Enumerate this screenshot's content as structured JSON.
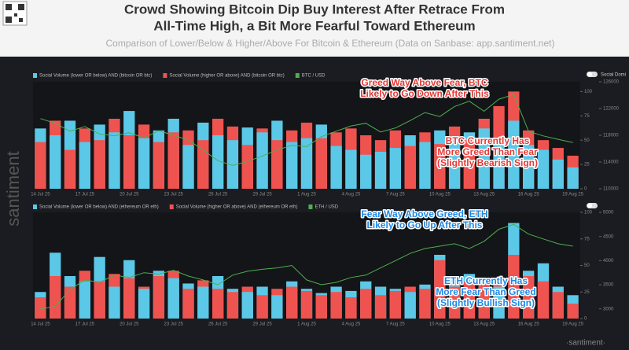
{
  "header": {
    "title": [
      "Crowd Showing Bitcoin Dip Buy Interest After Retrace From",
      "All-Time High, a Bit More Fearful Toward Ethereum"
    ],
    "subtitle": "Comparison of Lower/Below & Higher/Above For Bitcoin & Ethereum (Data on Sanbase: app.santiment.net)",
    "watermark": "santiment",
    "footer": "·santiment·",
    "toggle": "Social Domi"
  },
  "chart_data": [
    {
      "type": "bar",
      "categories": [
        "14 Jul 25",
        null,
        null,
        "17 Jul 25",
        null,
        null,
        "20 Jul 25",
        null,
        null,
        "23 Jul 25",
        null,
        null,
        "26 Jul 25",
        null,
        null,
        "29 Jul 25",
        null,
        null,
        "1 Aug 25",
        null,
        null,
        "4 Aug 25",
        null,
        null,
        "7 Aug 25",
        null,
        null,
        "10 Aug 25",
        null,
        null,
        "13 Aug 25",
        null,
        null,
        "16 Aug 25",
        null,
        null,
        "19 Aug 25"
      ],
      "series": [
        {
          "name": "Social Volume (lower OR below) AND (bitcoin OR btc)",
          "color": "#5bc8e8",
          "values": [
            62,
            55,
            70,
            48,
            66,
            58,
            80,
            52,
            60,
            72,
            45,
            68,
            55,
            50,
            63,
            58,
            70,
            48,
            52,
            66,
            44,
            40,
            35,
            38,
            42,
            55,
            48,
            60,
            52,
            58,
            62,
            48,
            70,
            45,
            40,
            30,
            22
          ]
        },
        {
          "name": "Social Volume (higher OR above) AND (bitcoin OR btc)",
          "color": "#ef5350",
          "values": [
            48,
            70,
            40,
            62,
            50,
            72,
            55,
            66,
            48,
            58,
            60,
            50,
            72,
            64,
            45,
            62,
            50,
            60,
            68,
            52,
            58,
            62,
            55,
            50,
            60,
            44,
            58,
            46,
            64,
            50,
            72,
            85,
            100,
            60,
            50,
            42,
            34
          ]
        },
        {
          "name": "BTC / USD",
          "color": "#4caf50",
          "axis": "y2",
          "values": [
            120500,
            119800,
            118600,
            119300,
            118200,
            117900,
            118400,
            117600,
            118700,
            118000,
            117300,
            115800,
            114200,
            113500,
            114100,
            114900,
            115800,
            116500,
            116300,
            117800,
            118600,
            119400,
            119800,
            118500,
            119100,
            120200,
            121400,
            120800,
            122300,
            123100,
            121600,
            123400,
            124100,
            118600,
            117900,
            117400,
            116900
          ]
        }
      ],
      "ylim": [
        0,
        110
      ],
      "yticks": [
        0,
        25,
        50,
        75,
        100
      ],
      "y2lim": [
        110000,
        126000
      ],
      "y2ticks": [
        110000,
        114000,
        118000,
        122000,
        126000
      ],
      "annotations": [
        {
          "color": "#e53935",
          "lines": [
            "Greed Way Above Fear, BTC",
            "Likely to Go Down After This"
          ]
        },
        {
          "color": "#e53935",
          "lines": [
            "BTC Currently Has",
            "More Greed Than Fear",
            "(Slightly Bearish Sign)"
          ]
        }
      ]
    },
    {
      "type": "bar",
      "categories": [
        "14 Jul 25",
        null,
        null,
        "17 Jul 25",
        null,
        null,
        "20 Jul 25",
        null,
        null,
        "23 Jul 25",
        null,
        null,
        "26 Jul 25",
        null,
        null,
        "29 Jul 25",
        null,
        null,
        "1 Aug 25",
        null,
        null,
        "4 Aug 25",
        null,
        null,
        "7 Aug 25",
        null,
        null,
        "10 Aug 25",
        null,
        null,
        "13 Aug 25",
        null,
        null,
        "16 Aug 25",
        null,
        null,
        "19 Aug 25"
      ],
      "series": [
        {
          "name": "Social Volume (lower OR below) AND (ethereum OR eth)",
          "color": "#5bc8e8",
          "values": [
            25,
            62,
            40,
            35,
            58,
            30,
            55,
            28,
            45,
            38,
            33,
            30,
            40,
            28,
            25,
            30,
            22,
            35,
            28,
            24,
            30,
            26,
            35,
            30,
            28,
            25,
            32,
            60,
            38,
            42,
            35,
            30,
            90,
            45,
            52,
            30,
            22
          ]
        },
        {
          "name": "Social Volume (higher OR above) AND (ethereum OR eth)",
          "color": "#ef5350",
          "values": [
            20,
            40,
            30,
            45,
            35,
            42,
            38,
            30,
            40,
            45,
            28,
            36,
            28,
            25,
            30,
            22,
            28,
            30,
            26,
            22,
            25,
            20,
            28,
            22,
            26,
            30,
            28,
            55,
            30,
            35,
            32,
            38,
            60,
            40,
            35,
            25,
            14
          ]
        },
        {
          "name": "ETH / USD",
          "color": "#4caf50",
          "axis": "y2",
          "values": [
            3000,
            3050,
            3400,
            3600,
            3550,
            3700,
            3650,
            3750,
            3720,
            3800,
            3680,
            3600,
            3500,
            3700,
            3780,
            3820,
            3850,
            3900,
            3600,
            3500,
            3550,
            3650,
            3700,
            3850,
            4000,
            4150,
            4250,
            4300,
            4350,
            4250,
            4400,
            4650,
            4750,
            4550,
            4450,
            4350,
            4300
          ]
        }
      ],
      "ylim": [
        0,
        100
      ],
      "yticks": [
        0,
        25,
        50,
        75,
        100
      ],
      "y2lim": [
        2800,
        5000
      ],
      "y2ticks": [
        3000,
        3500,
        4000,
        4500,
        5000
      ],
      "annotations": [
        {
          "color": "#1e88e5",
          "lines": [
            "Fear Way Above Greed, ETH",
            "Likely to Go Up After This"
          ]
        },
        {
          "color": "#1e88e5",
          "lines": [
            "ETH Currently Has",
            "More Fear Than Greed",
            "(Slightly Bullish Sign)"
          ]
        }
      ]
    }
  ]
}
